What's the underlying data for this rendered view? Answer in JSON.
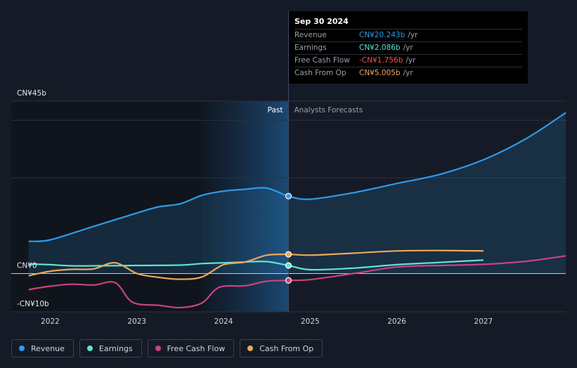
{
  "tooltip": {
    "date": "Sep 30 2024",
    "rows": [
      {
        "label": "Revenue",
        "value": "CN¥20.243b",
        "unit": "/yr",
        "color": "#2f9be8"
      },
      {
        "label": "Earnings",
        "value": "CN¥2.086b",
        "unit": "/yr",
        "color": "#5fe3d0"
      },
      {
        "label": "Free Cash Flow",
        "value": "-CN¥1.756b",
        "unit": "/yr",
        "color": "#ff4d4d"
      },
      {
        "label": "Cash From Op",
        "value": "CN¥5.005b",
        "unit": "/yr",
        "color": "#eaa95a"
      }
    ]
  },
  "regions": {
    "past": "Past",
    "forecast": "Analysts Forecasts"
  },
  "legend": [
    {
      "label": "Revenue",
      "color": "#2f9be8"
    },
    {
      "label": "Earnings",
      "color": "#5fe3d0"
    },
    {
      "label": "Free Cash Flow",
      "color": "#c9437e"
    },
    {
      "label": "Cash From Op",
      "color": "#eaa95a"
    }
  ],
  "chart_data": {
    "type": "line",
    "ylim": [
      -10,
      45
    ],
    "xlim": [
      2021.55,
      2027.95
    ],
    "y_tick_labels": [
      {
        "value": 45,
        "label": "CN¥45b"
      },
      {
        "value": 0,
        "label": "CN¥0"
      },
      {
        "value": -10,
        "label": "-CN¥10b"
      }
    ],
    "x_ticks": [
      2022,
      2023,
      2024,
      2025,
      2026,
      2027
    ],
    "x_tick_labels": [
      "2022",
      "2023",
      "2024",
      "2025",
      "2026",
      "2027"
    ],
    "past_forecast_divider": 2024.75,
    "highlight_start": 2023.75,
    "series": [
      {
        "name": "Revenue",
        "color": "#2f9be8",
        "area": true,
        "points": [
          [
            2021.75,
            8.4
          ],
          [
            2022.0,
            8.8
          ],
          [
            2022.5,
            12.3
          ],
          [
            2023.0,
            15.8
          ],
          [
            2023.25,
            17.4
          ],
          [
            2023.5,
            18.2
          ],
          [
            2023.75,
            20.4
          ],
          [
            2024.0,
            21.5
          ],
          [
            2024.25,
            22.0
          ],
          [
            2024.5,
            22.3
          ],
          [
            2024.75,
            20.2
          ],
          [
            2025.0,
            19.4
          ],
          [
            2025.5,
            21.1
          ],
          [
            2026.0,
            23.5
          ],
          [
            2026.5,
            25.9
          ],
          [
            2027.0,
            29.7
          ],
          [
            2027.5,
            35.3
          ],
          [
            2027.95,
            42.0
          ]
        ]
      },
      {
        "name": "Earnings",
        "color": "#5fe3d0",
        "points": [
          [
            2021.75,
            2.5
          ],
          [
            2022.0,
            2.3
          ],
          [
            2022.25,
            2.0
          ],
          [
            2022.5,
            2.0
          ],
          [
            2023.0,
            2.1
          ],
          [
            2023.5,
            2.2
          ],
          [
            2023.75,
            2.6
          ],
          [
            2024.0,
            2.8
          ],
          [
            2024.25,
            3.0
          ],
          [
            2024.5,
            3.1
          ],
          [
            2024.75,
            2.1
          ],
          [
            2025.0,
            1.0
          ],
          [
            2025.5,
            1.4
          ],
          [
            2026.0,
            2.3
          ],
          [
            2026.5,
            2.9
          ],
          [
            2027.0,
            3.5
          ]
        ]
      },
      {
        "name": "Free Cash Flow",
        "color": "#c9437e",
        "points": [
          [
            2021.75,
            -4.2
          ],
          [
            2022.0,
            -3.3
          ],
          [
            2022.25,
            -2.8
          ],
          [
            2022.5,
            -3.0
          ],
          [
            2022.75,
            -2.4
          ],
          [
            2022.95,
            -7.5
          ],
          [
            2023.25,
            -8.3
          ],
          [
            2023.5,
            -8.9
          ],
          [
            2023.75,
            -7.7
          ],
          [
            2023.95,
            -3.6
          ],
          [
            2024.25,
            -3.2
          ],
          [
            2024.5,
            -2.0
          ],
          [
            2024.75,
            -1.8
          ],
          [
            2025.0,
            -1.6
          ],
          [
            2025.5,
            0.0
          ],
          [
            2026.0,
            1.7
          ],
          [
            2026.5,
            2.1
          ],
          [
            2027.0,
            2.4
          ],
          [
            2027.5,
            3.2
          ],
          [
            2027.95,
            4.6
          ]
        ]
      },
      {
        "name": "Cash From Op",
        "color": "#eaa95a",
        "points": [
          [
            2021.75,
            -0.6
          ],
          [
            2022.0,
            0.6
          ],
          [
            2022.25,
            1.1
          ],
          [
            2022.5,
            1.2
          ],
          [
            2022.75,
            2.8
          ],
          [
            2023.0,
            0.0
          ],
          [
            2023.25,
            -1.0
          ],
          [
            2023.5,
            -1.5
          ],
          [
            2023.75,
            -0.9
          ],
          [
            2024.0,
            2.3
          ],
          [
            2024.25,
            3.0
          ],
          [
            2024.5,
            4.8
          ],
          [
            2024.75,
            5.0
          ],
          [
            2025.0,
            4.8
          ],
          [
            2025.5,
            5.3
          ],
          [
            2026.0,
            5.9
          ],
          [
            2026.5,
            6.0
          ],
          [
            2027.0,
            5.9
          ]
        ]
      }
    ]
  }
}
